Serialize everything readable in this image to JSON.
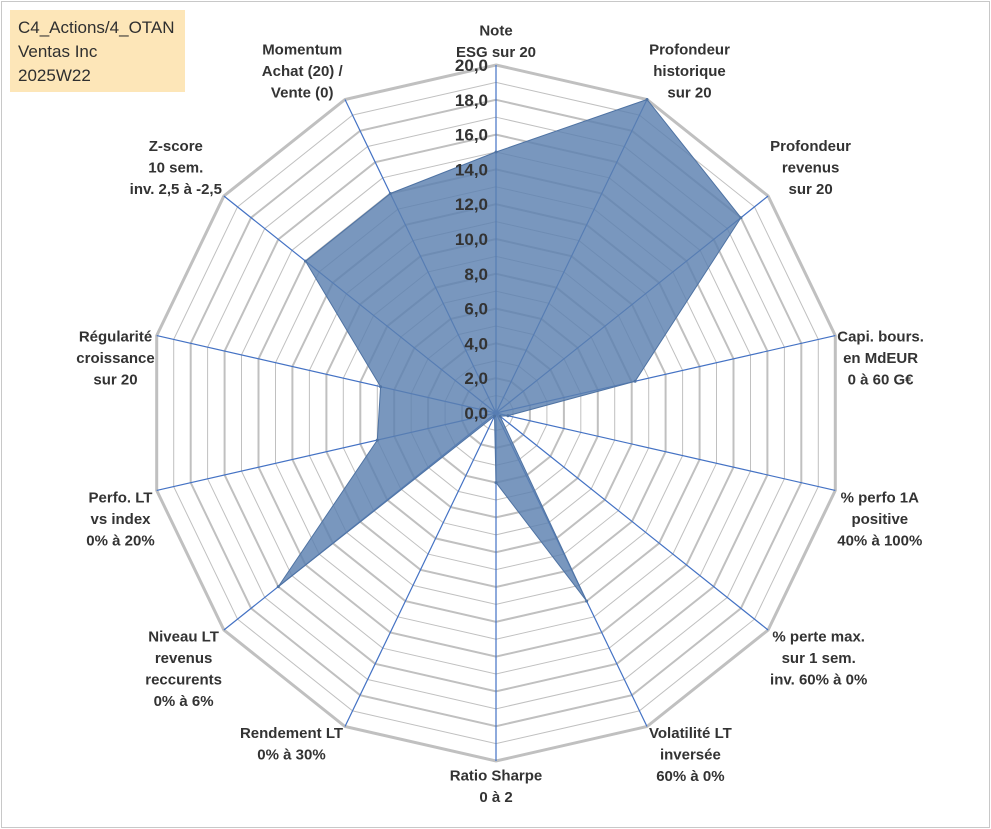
{
  "info_box": {
    "line1": "C4_Actions/4_OTAN",
    "line2": "Ventas Inc",
    "line3": "2025W22"
  },
  "chart_data": {
    "type": "radar",
    "title": "",
    "rlim": [
      0,
      20
    ],
    "tick_labels": [
      "0,0",
      "2,0",
      "4,0",
      "6,0",
      "8,0",
      "10,0",
      "12,0",
      "14,0",
      "16,0",
      "18,0",
      "20,0"
    ],
    "axes": [
      {
        "id": "note-esg",
        "label": [
          "Note",
          "ESG sur 20"
        ]
      },
      {
        "id": "profondeur-historique",
        "label": [
          "Profondeur",
          "historique",
          "sur 20"
        ]
      },
      {
        "id": "profondeur-revenus",
        "label": [
          "Profondeur",
          "revenus",
          "sur 20"
        ]
      },
      {
        "id": "capi-bours",
        "label": [
          "Capi. bours.",
          "en MdEUR",
          "0 à 60 G€"
        ]
      },
      {
        "id": "perfo-1a",
        "label": [
          "% perfo 1A",
          "positive",
          "40% à 100%"
        ]
      },
      {
        "id": "perte-max",
        "label": [
          "% perte max.",
          "sur 1 sem.",
          "inv. 60% à 0%"
        ]
      },
      {
        "id": "volatilite-lt",
        "label": [
          "Volatilité LT",
          "inversée",
          "60% à 0%"
        ]
      },
      {
        "id": "ratio-sharpe",
        "label": [
          "Ratio Sharpe",
          "0 à 2"
        ]
      },
      {
        "id": "rendement-lt",
        "label": [
          "Rendement LT",
          "0% à 30%"
        ]
      },
      {
        "id": "niveau-lt-revenus",
        "label": [
          "Niveau LT",
          "revenus",
          "reccurents",
          "0% à 6%"
        ]
      },
      {
        "id": "perfo-lt-index",
        "label": [
          "Perfo. LT",
          "vs index",
          "0% à 20%"
        ]
      },
      {
        "id": "regularite-croissance",
        "label": [
          "Régularité",
          "croissance",
          "sur 20"
        ]
      },
      {
        "id": "z-score",
        "label": [
          "Z-score",
          "10 sem.",
          "inv. 2,5 à -2,5"
        ]
      },
      {
        "id": "momentum",
        "label": [
          "Momentum",
          "Achat (20) /",
          "Vente (0)"
        ]
      }
    ],
    "series": [
      {
        "name": "Ventas Inc",
        "color": "#5b80b0",
        "values": [
          15.0,
          20.0,
          18.0,
          8.2,
          0.7,
          0.3,
          12.0,
          4.0,
          0.2,
          16.0,
          7.0,
          6.8,
          14.0,
          14.0
        ]
      }
    ],
    "grid_color": "#c0c0c0",
    "spoke_color": "#4472c4"
  }
}
